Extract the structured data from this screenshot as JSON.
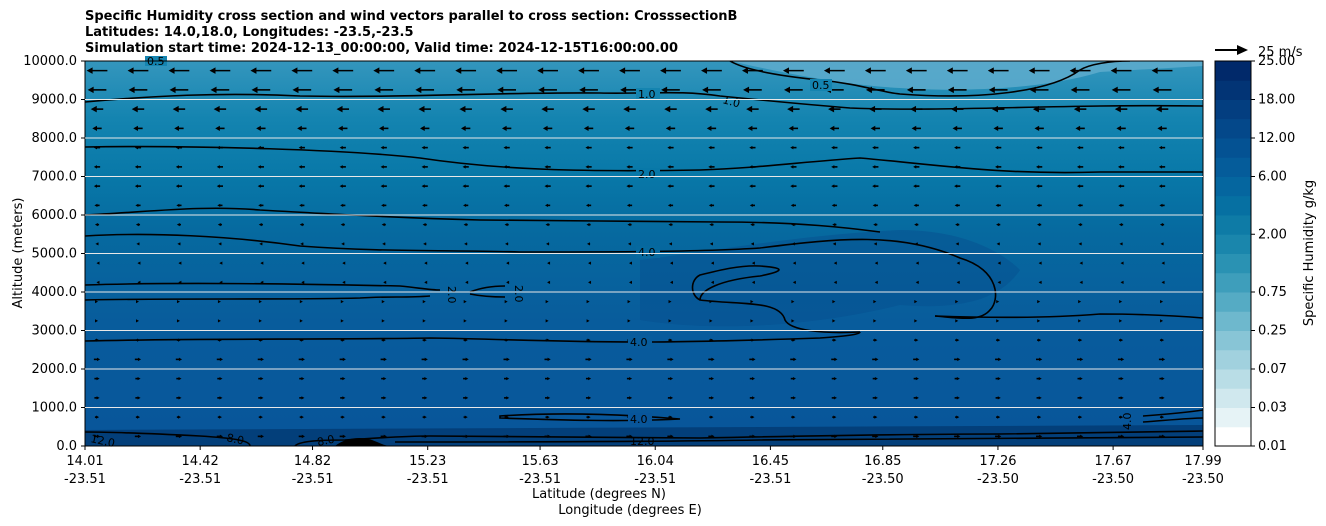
{
  "title_lines": [
    "Specific Humidity cross section and wind vectors parallel to cross section: CrosssectionB",
    "Latitudes: 14.0,18.0, Longitudes: -23.5,-23.5",
    "Simulation start time: 2024-12-13_00:00:00, Valid time: 2024-12-15T16:00:00.00"
  ],
  "chart_data": {
    "type": "heatmap",
    "title": "Specific Humidity cross section and wind vectors parallel to cross section: CrosssectionB",
    "xlabel_lines": [
      "Latitude (degrees N)",
      "Longitude (degrees E)"
    ],
    "ylabel": "Altitude (meters)",
    "ylim": [
      0,
      10000
    ],
    "yticks": [
      "0.0",
      "1000.0",
      "2000.0",
      "3000.0",
      "4000.0",
      "5000.0",
      "6000.0",
      "7000.0",
      "8000.0",
      "9000.0",
      "10000.0"
    ],
    "xticks": [
      {
        "lat": "14.01",
        "lon": "-23.51"
      },
      {
        "lat": "14.42",
        "lon": "-23.51"
      },
      {
        "lat": "14.82",
        "lon": "-23.51"
      },
      {
        "lat": "15.23",
        "lon": "-23.51"
      },
      {
        "lat": "15.63",
        "lon": "-23.51"
      },
      {
        "lat": "16.04",
        "lon": "-23.51"
      },
      {
        "lat": "16.45",
        "lon": "-23.51"
      },
      {
        "lat": "16.85",
        "lon": "-23.50"
      },
      {
        "lat": "17.26",
        "lon": "-23.50"
      },
      {
        "lat": "17.67",
        "lon": "-23.50"
      },
      {
        "lat": "17.99",
        "lon": "-23.50"
      }
    ],
    "grid": "horizontal",
    "colorbar": {
      "label": "Specific Humidity g/kg",
      "levels": [
        0.01,
        0.02,
        0.03,
        0.05,
        0.07,
        0.1,
        0.25,
        0.5,
        0.75,
        1.0,
        1.5,
        2.0,
        3.0,
        4.0,
        6.0,
        8.0,
        12.0,
        15.0,
        18.0,
        20.0,
        25.0
      ],
      "tick_labels": [
        "0.01",
        "0.03",
        "0.07",
        "0.25",
        "0.75",
        "2.00",
        "6.00",
        "12.00",
        "18.00",
        "25.00"
      ]
    },
    "contour_labels": [
      "0.5",
      "0.5",
      "1.0",
      "1.0",
      "2.0",
      "2.0",
      "2.0",
      "4.0",
      "4.0",
      "4.0",
      "4.0",
      "8.0",
      "8.0",
      "12.0",
      "12.0"
    ],
    "quiver_key": "25 m/s",
    "wind_levels_m": [
      250,
      750,
      1250,
      1750,
      2250,
      2750,
      3250,
      3750,
      4250,
      4750,
      5250,
      5750,
      6250,
      6750,
      7250,
      7750,
      8250,
      8750,
      9250,
      9750
    ],
    "wind_u_ms": [
      6,
      4,
      5,
      5,
      6,
      4,
      2,
      2,
      -1,
      -1,
      -3,
      -4,
      -5,
      -6,
      -6,
      -6,
      -9,
      -12,
      -18,
      -20
    ]
  }
}
